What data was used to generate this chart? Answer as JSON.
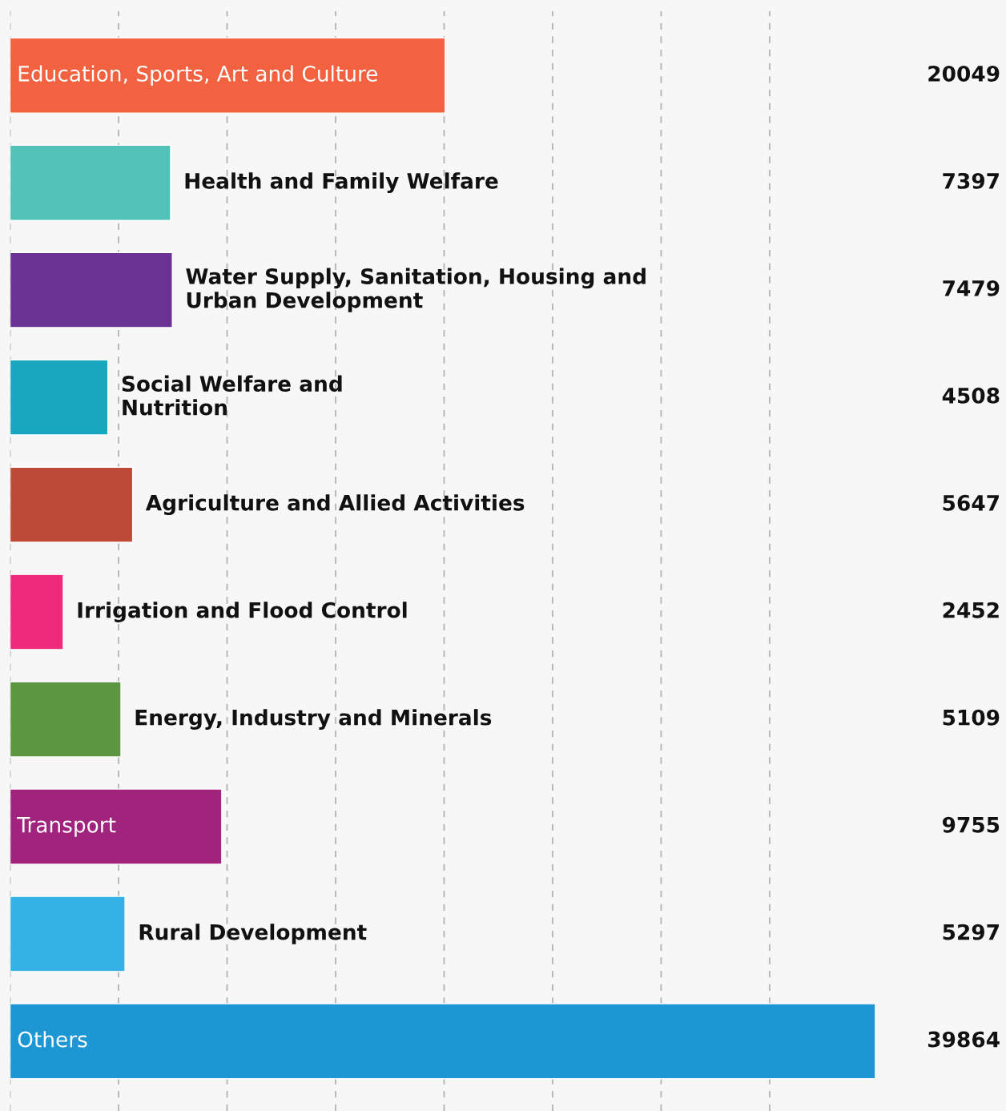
{
  "chart_data": {
    "type": "bar",
    "orientation": "horizontal",
    "data_labels": true,
    "grid": "x",
    "tick_labels": false,
    "categories": [
      "Education, Sports, Art and Culture",
      "Health and Family Welfare",
      "Water Supply, Sanitation, Housing and\nUrban Development",
      "Social Welfare and\nNutrition",
      "Agriculture and Allied Activities",
      "Irrigation and Flood Control",
      "Energy, Industry and Minerals",
      "Transport",
      "Rural Development",
      "Others"
    ],
    "values": [
      20049,
      7397,
      7479,
      4508,
      5647,
      2452,
      5109,
      9755,
      5297,
      39864
    ],
    "colors": [
      "#f26241",
      "#50c2b6",
      "#6a3393",
      "#19a7bf",
      "#bc4a37",
      "#ee2a7b",
      "#5d9640",
      "#a0247d",
      "#33b2e3",
      "#1d97d3"
    ]
  }
}
